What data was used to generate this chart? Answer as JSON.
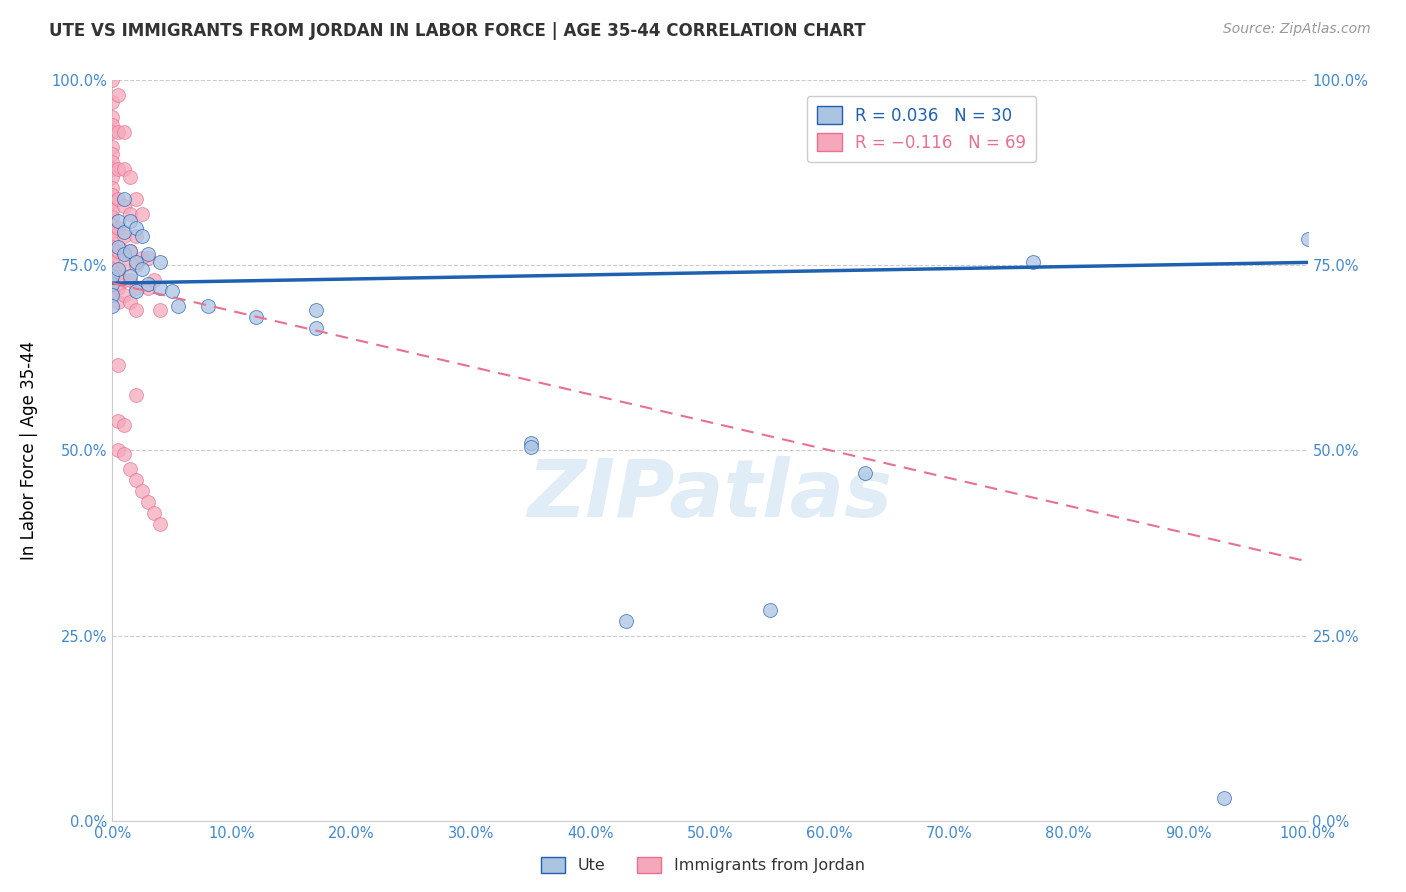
{
  "title": "UTE VS IMMIGRANTS FROM JORDAN IN LABOR FORCE | AGE 35-44 CORRELATION CHART",
  "source": "Source: ZipAtlas.com",
  "ylabel": "In Labor Force | Age 35-44",
  "xlim": [
    0,
    1.0
  ],
  "ylim": [
    0,
    1.0
  ],
  "xticks": [
    0.0,
    0.1,
    0.2,
    0.3,
    0.4,
    0.5,
    0.6,
    0.7,
    0.8,
    0.9,
    1.0
  ],
  "yticks": [
    0.0,
    0.25,
    0.5,
    0.75,
    1.0
  ],
  "ute_color": "#aac4e2",
  "jordan_color": "#f5a8bc",
  "ute_line_color": "#2060b0",
  "jordan_line_color": "#e87090",
  "watermark_text": "ZIPatlas",
  "ute_line_start_y": 0.726,
  "ute_line_end_y": 0.754,
  "jordan_line_start_y": 0.726,
  "jordan_line_end_y": 0.35,
  "ute_points": [
    [
      0.0,
      0.725
    ],
    [
      0.0,
      0.71
    ],
    [
      0.0,
      0.695
    ],
    [
      0.0,
      0.735
    ],
    [
      0.005,
      0.81
    ],
    [
      0.005,
      0.775
    ],
    [
      0.005,
      0.745
    ],
    [
      0.01,
      0.84
    ],
    [
      0.01,
      0.795
    ],
    [
      0.01,
      0.765
    ],
    [
      0.015,
      0.81
    ],
    [
      0.015,
      0.77
    ],
    [
      0.015,
      0.735
    ],
    [
      0.02,
      0.8
    ],
    [
      0.02,
      0.755
    ],
    [
      0.02,
      0.715
    ],
    [
      0.025,
      0.79
    ],
    [
      0.025,
      0.745
    ],
    [
      0.03,
      0.765
    ],
    [
      0.03,
      0.725
    ],
    [
      0.04,
      0.755
    ],
    [
      0.04,
      0.72
    ],
    [
      0.05,
      0.715
    ],
    [
      0.055,
      0.695
    ],
    [
      0.08,
      0.695
    ],
    [
      0.12,
      0.68
    ],
    [
      0.17,
      0.69
    ],
    [
      0.17,
      0.665
    ],
    [
      0.35,
      0.51
    ],
    [
      0.35,
      0.505
    ],
    [
      0.43,
      0.27
    ],
    [
      0.55,
      0.285
    ],
    [
      0.63,
      0.47
    ],
    [
      0.77,
      0.755
    ],
    [
      0.93,
      0.03
    ],
    [
      1.0,
      0.785
    ]
  ],
  "jordan_points": [
    [
      0.0,
      1.0
    ],
    [
      0.0,
      0.97
    ],
    [
      0.0,
      0.95
    ],
    [
      0.0,
      0.94
    ],
    [
      0.0,
      0.93
    ],
    [
      0.0,
      0.91
    ],
    [
      0.0,
      0.9
    ],
    [
      0.0,
      0.89
    ],
    [
      0.0,
      0.88
    ],
    [
      0.0,
      0.87
    ],
    [
      0.0,
      0.855
    ],
    [
      0.0,
      0.845
    ],
    [
      0.0,
      0.835
    ],
    [
      0.0,
      0.825
    ],
    [
      0.0,
      0.815
    ],
    [
      0.0,
      0.805
    ],
    [
      0.0,
      0.795
    ],
    [
      0.0,
      0.785
    ],
    [
      0.0,
      0.775
    ],
    [
      0.0,
      0.765
    ],
    [
      0.0,
      0.755
    ],
    [
      0.0,
      0.745
    ],
    [
      0.0,
      0.735
    ],
    [
      0.0,
      0.725
    ],
    [
      0.0,
      0.715
    ],
    [
      0.005,
      0.98
    ],
    [
      0.005,
      0.93
    ],
    [
      0.005,
      0.88
    ],
    [
      0.005,
      0.84
    ],
    [
      0.005,
      0.8
    ],
    [
      0.005,
      0.77
    ],
    [
      0.005,
      0.74
    ],
    [
      0.005,
      0.72
    ],
    [
      0.005,
      0.7
    ],
    [
      0.01,
      0.93
    ],
    [
      0.01,
      0.88
    ],
    [
      0.01,
      0.83
    ],
    [
      0.01,
      0.79
    ],
    [
      0.01,
      0.77
    ],
    [
      0.01,
      0.75
    ],
    [
      0.01,
      0.73
    ],
    [
      0.01,
      0.71
    ],
    [
      0.015,
      0.87
    ],
    [
      0.015,
      0.82
    ],
    [
      0.015,
      0.77
    ],
    [
      0.015,
      0.73
    ],
    [
      0.015,
      0.7
    ],
    [
      0.02,
      0.84
    ],
    [
      0.02,
      0.79
    ],
    [
      0.02,
      0.75
    ],
    [
      0.02,
      0.72
    ],
    [
      0.02,
      0.69
    ],
    [
      0.025,
      0.82
    ],
    [
      0.025,
      0.76
    ],
    [
      0.03,
      0.76
    ],
    [
      0.03,
      0.72
    ],
    [
      0.035,
      0.73
    ],
    [
      0.04,
      0.69
    ],
    [
      0.005,
      0.615
    ],
    [
      0.005,
      0.54
    ],
    [
      0.02,
      0.575
    ],
    [
      0.01,
      0.535
    ],
    [
      0.005,
      0.5
    ],
    [
      0.01,
      0.495
    ],
    [
      0.015,
      0.475
    ],
    [
      0.02,
      0.46
    ],
    [
      0.025,
      0.445
    ],
    [
      0.03,
      0.43
    ],
    [
      0.035,
      0.415
    ],
    [
      0.04,
      0.4
    ]
  ]
}
